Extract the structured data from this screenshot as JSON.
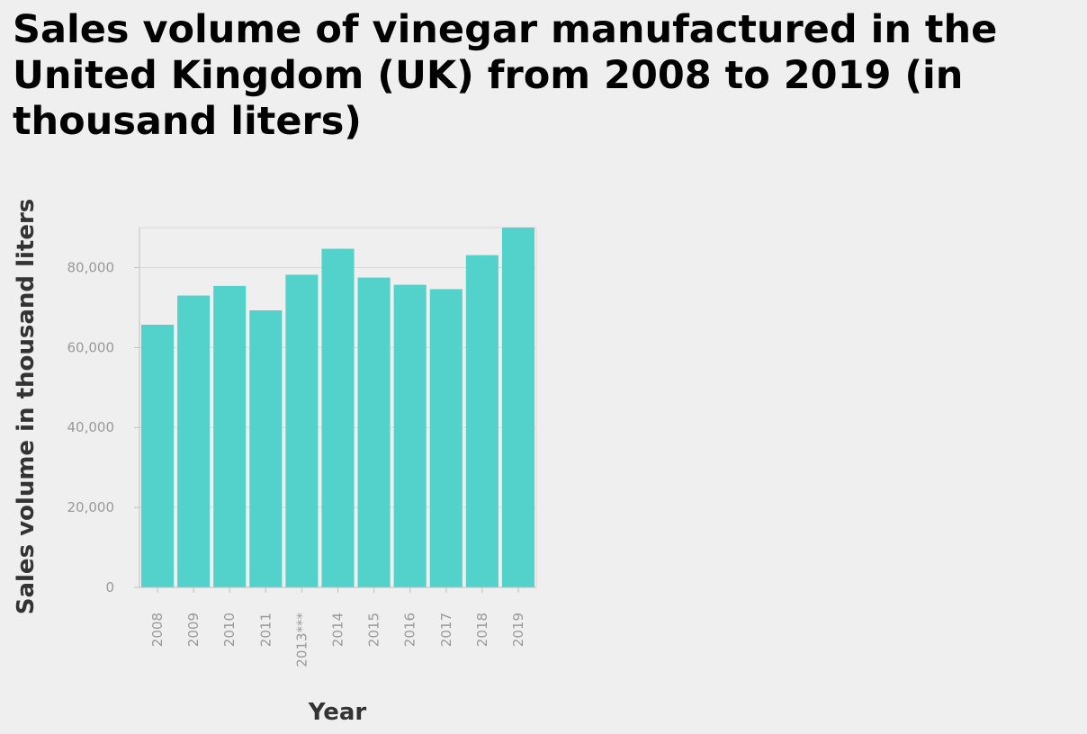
{
  "chart_data": {
    "type": "bar",
    "title": "Sales volume of vinegar manufactured in the United Kingdom (UK) from 2008 to 2019 (in thousand liters)",
    "xlabel": "Year",
    "ylabel": "Sales volume in thousand liters",
    "categories": [
      "2008",
      "2009",
      "2010",
      "2011",
      "2013***",
      "2014",
      "2015",
      "2016",
      "2017",
      "2018",
      "2019"
    ],
    "values": [
      65700,
      73000,
      75400,
      69300,
      78200,
      84700,
      77500,
      75700,
      74600,
      83100,
      90000
    ],
    "ylim": [
      0,
      90000
    ],
    "yticks": [
      0,
      20000,
      40000,
      60000,
      80000
    ],
    "ytick_labels": [
      "0",
      "20,000",
      "40,000",
      "60,000",
      "80,000"
    ],
    "grid": true,
    "legend": "none",
    "colors": {
      "bar": "#53d1cb",
      "grid": "#d9d9d9",
      "axis": "#bfbfbf",
      "tick_text": "#999999",
      "title_text": "#000000",
      "axis_title_text": "#333333",
      "background": "#efefef"
    }
  }
}
